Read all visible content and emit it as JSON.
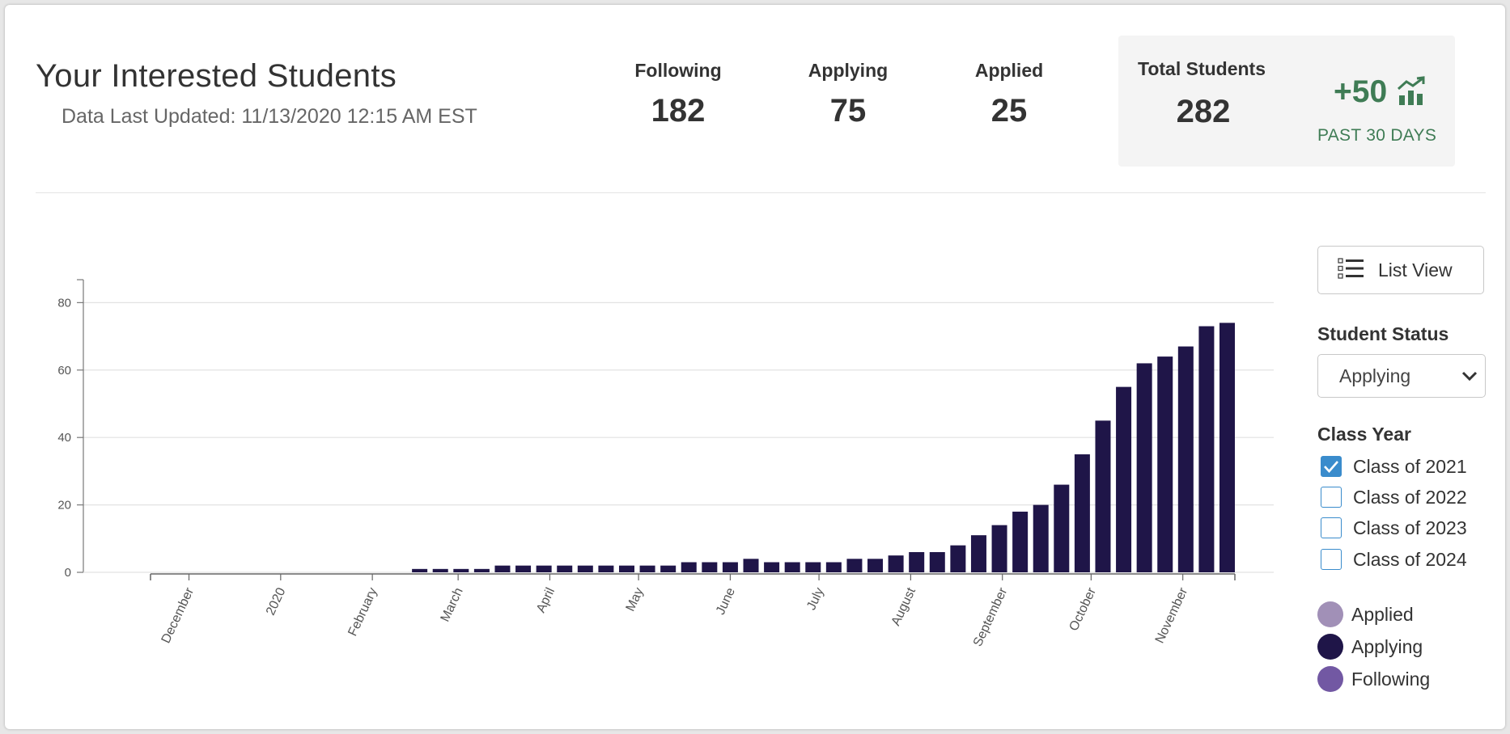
{
  "header": {
    "title": "Your Interested Students",
    "last_updated": "Data Last Updated: 11/13/2020 12:15 AM EST"
  },
  "stats": [
    {
      "label": "Following",
      "value": "182"
    },
    {
      "label": "Applying",
      "value": "75"
    },
    {
      "label": "Applied",
      "value": "25"
    }
  ],
  "total": {
    "label": "Total Students",
    "value": "282",
    "growth": "+50",
    "period": "PAST 30 DAYS",
    "growth_icon": "trending-up-chart-icon",
    "growth_color": "#3f7c55"
  },
  "controls": {
    "list_view_label": "List View",
    "list_view_icon": "list-icon",
    "status_label": "Student Status",
    "status_selected": "Applying",
    "class_year_label": "Class Year",
    "class_years": [
      {
        "label": "Class of 2021",
        "checked": true
      },
      {
        "label": "Class of 2022",
        "checked": false
      },
      {
        "label": "Class of 2023",
        "checked": false
      },
      {
        "label": "Class of 2024",
        "checked": false
      }
    ],
    "checkbox_color": "#3a8ccc"
  },
  "legend": [
    {
      "label": "Applied",
      "color": "#a190b7"
    },
    {
      "label": "Applying",
      "color": "#1f1548"
    },
    {
      "label": "Following",
      "color": "#7258a3"
    }
  ],
  "chart_data": {
    "type": "bar",
    "series_name": "Applying",
    "color": "#1f1548",
    "ylim": [
      0,
      88
    ],
    "yticks": [
      0,
      20,
      40,
      60,
      80
    ],
    "grid": true,
    "xtick_labels": [
      "December",
      "2020",
      "February",
      "March",
      "April",
      "May",
      "June",
      "July",
      "August",
      "September",
      "October",
      "November"
    ],
    "x_start": "2019-11-18",
    "x_end": "2020-11-16",
    "xtick_dates": [
      "2019-12-01",
      "2020-01-01",
      "2020-02-01",
      "2020-03-01",
      "2020-04-01",
      "2020-05-01",
      "2020-06-01",
      "2020-07-01",
      "2020-08-01",
      "2020-09-01",
      "2020-10-01",
      "2020-11-01"
    ],
    "bars": [
      {
        "week": "2020-02-17",
        "value": 1
      },
      {
        "week": "2020-02-24",
        "value": 1
      },
      {
        "week": "2020-03-02",
        "value": 1
      },
      {
        "week": "2020-03-09",
        "value": 1
      },
      {
        "week": "2020-03-16",
        "value": 2
      },
      {
        "week": "2020-03-23",
        "value": 2
      },
      {
        "week": "2020-03-30",
        "value": 2
      },
      {
        "week": "2020-04-06",
        "value": 2
      },
      {
        "week": "2020-04-13",
        "value": 2
      },
      {
        "week": "2020-04-20",
        "value": 2
      },
      {
        "week": "2020-04-27",
        "value": 2
      },
      {
        "week": "2020-05-04",
        "value": 2
      },
      {
        "week": "2020-05-11",
        "value": 2
      },
      {
        "week": "2020-05-18",
        "value": 3
      },
      {
        "week": "2020-05-25",
        "value": 3
      },
      {
        "week": "2020-06-01",
        "value": 3
      },
      {
        "week": "2020-06-08",
        "value": 4
      },
      {
        "week": "2020-06-15",
        "value": 3
      },
      {
        "week": "2020-06-22",
        "value": 3
      },
      {
        "week": "2020-06-29",
        "value": 3
      },
      {
        "week": "2020-07-06",
        "value": 3
      },
      {
        "week": "2020-07-13",
        "value": 4
      },
      {
        "week": "2020-07-20",
        "value": 4
      },
      {
        "week": "2020-07-27",
        "value": 5
      },
      {
        "week": "2020-08-03",
        "value": 6
      },
      {
        "week": "2020-08-10",
        "value": 6
      },
      {
        "week": "2020-08-17",
        "value": 8
      },
      {
        "week": "2020-08-24",
        "value": 11
      },
      {
        "week": "2020-08-31",
        "value": 14
      },
      {
        "week": "2020-09-07",
        "value": 18
      },
      {
        "week": "2020-09-14",
        "value": 20
      },
      {
        "week": "2020-09-21",
        "value": 26
      },
      {
        "week": "2020-09-28",
        "value": 35
      },
      {
        "week": "2020-10-05",
        "value": 45
      },
      {
        "week": "2020-10-12",
        "value": 55
      },
      {
        "week": "2020-10-19",
        "value": 62
      },
      {
        "week": "2020-10-26",
        "value": 64
      },
      {
        "week": "2020-11-02",
        "value": 67
      },
      {
        "week": "2020-11-09",
        "value": 73
      },
      {
        "week": "2020-11-16",
        "value": 74
      }
    ]
  }
}
